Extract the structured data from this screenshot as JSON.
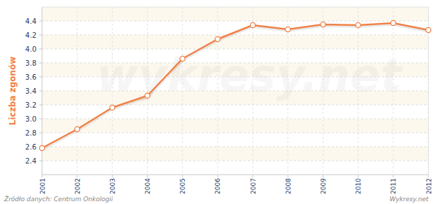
{
  "chart_data": {
    "type": "line",
    "y_label": "Liczba zgonów",
    "categories": [
      "2001",
      "2002",
      "2003",
      "2004",
      "2005",
      "2006",
      "2007",
      "2008",
      "2009",
      "2010",
      "2011",
      "2012"
    ],
    "values": [
      2.58,
      2.85,
      3.16,
      3.33,
      3.86,
      4.14,
      4.34,
      4.28,
      4.35,
      4.34,
      4.37,
      4.27
    ],
    "color": "#f08148",
    "marker": "circle",
    "ylim": [
      2.2,
      4.6
    ],
    "yticks": [
      2.4,
      2.6,
      2.8,
      {
        "value": 3,
        "label": "3.0"
      },
      3.2,
      3.4,
      3.6,
      3.8,
      {
        "value": 4,
        "label": "4.0"
      },
      4.2,
      4.4
    ],
    "grid": true,
    "annotations": [
      "Źródło danych: Centrum Onkologii",
      "Wykresy.net",
      "wykresy.net"
    ]
  }
}
